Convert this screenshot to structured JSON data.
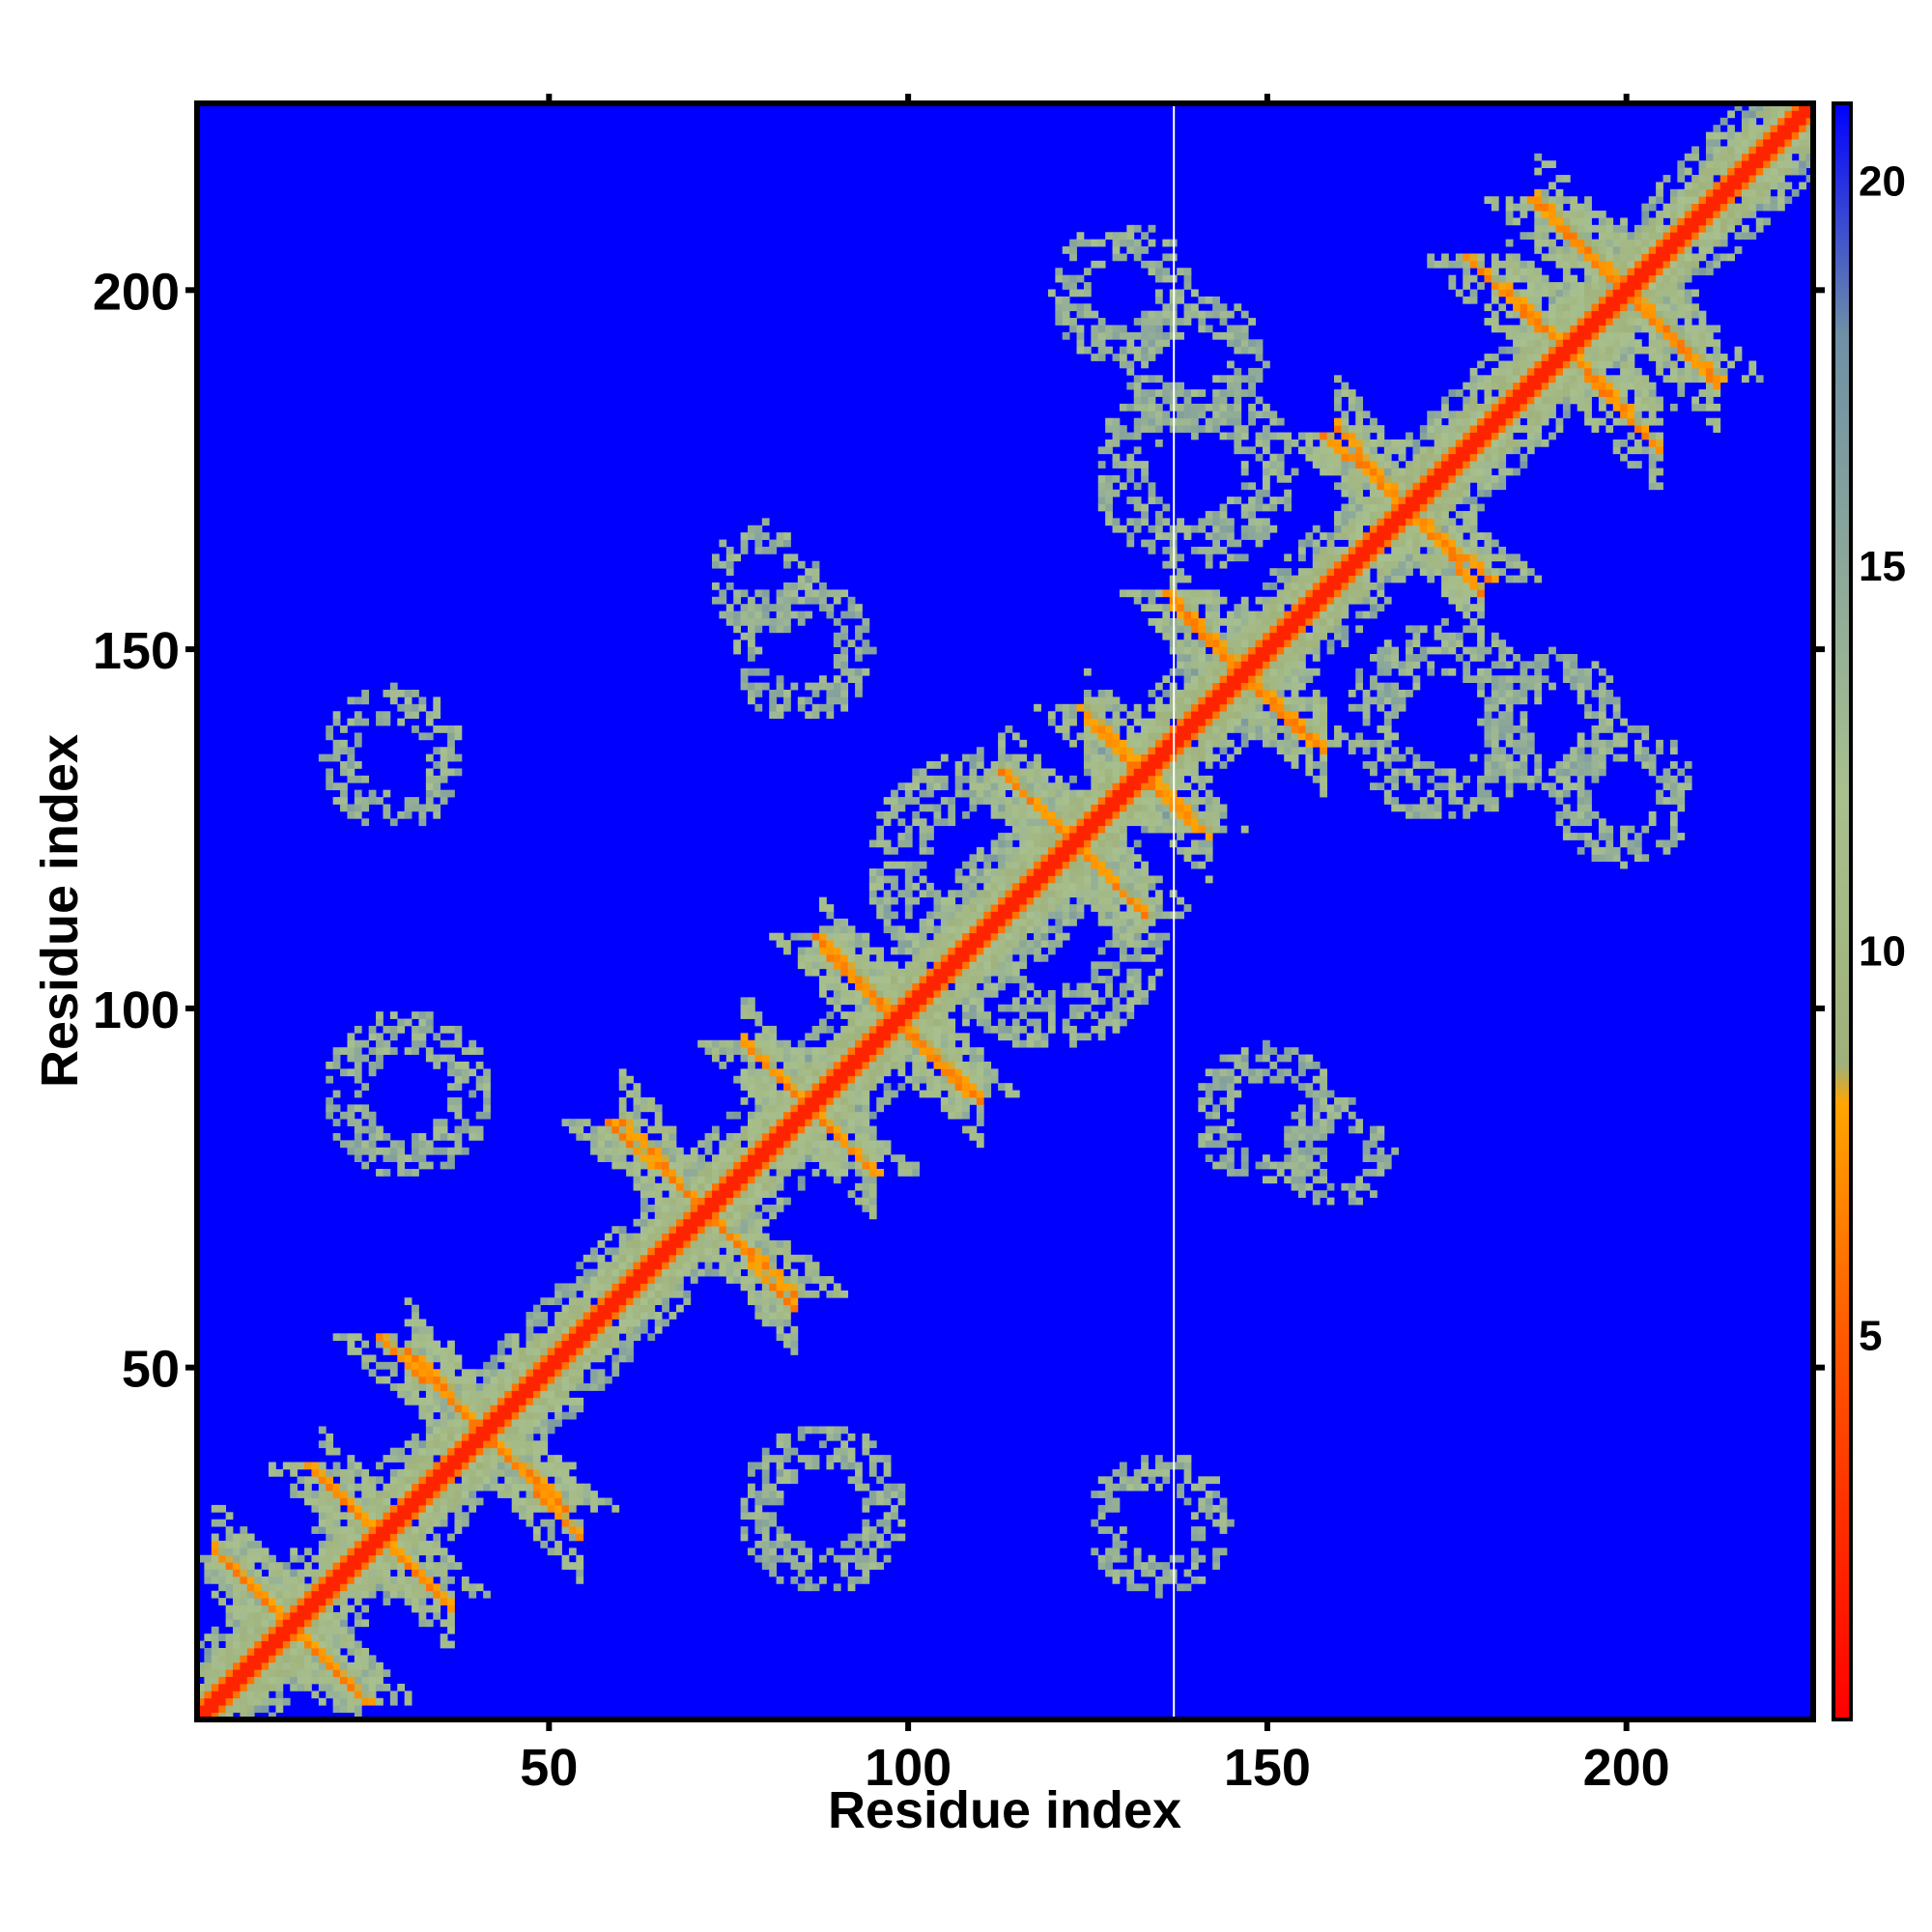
{
  "chart_data": {
    "type": "heatmap",
    "title": "",
    "xlabel": "Residue index",
    "ylabel": "Residue index",
    "n_residues": 226,
    "xlim": [
      1,
      226
    ],
    "ylim": [
      1,
      226
    ],
    "xticks": [
      50,
      100,
      150,
      200
    ],
    "yticks": [
      50,
      100,
      150,
      200
    ],
    "colorbar": {
      "range": [
        0,
        21
      ],
      "ticks": [
        5,
        10,
        15,
        20
      ],
      "stops": [
        {
          "value": 0,
          "color": "#ff0000"
        },
        {
          "value": 5,
          "color": "#ff5a00"
        },
        {
          "value": 8,
          "color": "#ffa500"
        },
        {
          "value": 8.5,
          "color": "#9fb07a"
        },
        {
          "value": 12,
          "color": "#a8c08e"
        },
        {
          "value": 18,
          "color": "#6f8fa6"
        },
        {
          "value": 21,
          "color": "#0000ff"
        }
      ]
    },
    "background_value": 21,
    "background_color": "#0000ff",
    "gap_column_residue": 137,
    "diagonal_band": {
      "width_residues": 3,
      "value": 2
    },
    "contact_features": [
      {
        "type": "antiparallel",
        "x": [
          3,
          24
        ],
        "y": [
          24,
          3
        ],
        "value": 6
      },
      {
        "type": "antiparallel",
        "x": [
          16,
          34
        ],
        "y": [
          36,
          18
        ],
        "value": 6
      },
      {
        "type": "antiparallel",
        "x": [
          26,
          52
        ],
        "y": [
          54,
          30
        ],
        "value": 6
      },
      {
        "type": "antiparallel",
        "x": [
          58,
          84
        ],
        "y": [
          84,
          60
        ],
        "value": 6
      },
      {
        "type": "antiparallel",
        "x": [
          77,
          95
        ],
        "y": [
          95,
          77
        ],
        "value": 6
      },
      {
        "type": "antiparallel",
        "x": [
          87,
          108
        ],
        "y": [
          110,
          88
        ],
        "value": 6
      },
      {
        "type": "antiparallel",
        "x": [
          113,
          133
        ],
        "y": [
          133,
          113
        ],
        "value": 6
      },
      {
        "type": "antiparallel",
        "x": [
          124,
          140
        ],
        "y": [
          142,
          125
        ],
        "value": 6
      },
      {
        "type": "antiparallel",
        "x": [
          136,
          156
        ],
        "y": [
          158,
          137
        ],
        "value": 6
      },
      {
        "type": "antiparallel",
        "x": [
          158,
          181
        ],
        "y": [
          180,
          160
        ],
        "value": 6
      },
      {
        "type": "antiparallel",
        "x": [
          178,
          200
        ],
        "y": [
          205,
          184
        ],
        "value": 6
      },
      {
        "type": "antiparallel",
        "x": [
          187,
          213
        ],
        "y": [
          213,
          188
        ],
        "value": 6
      },
      {
        "type": "blob",
        "x": 135,
        "y": 28,
        "r": 10,
        "value": 12
      },
      {
        "type": "blob",
        "x": 120,
        "y": 110,
        "r": 16,
        "value": 12
      },
      {
        "type": "blob",
        "x": 175,
        "y": 140,
        "r": 14,
        "value": 12
      },
      {
        "type": "blob",
        "x": 150,
        "y": 85,
        "r": 10,
        "value": 12
      },
      {
        "type": "blob",
        "x": 80,
        "y": 160,
        "r": 8,
        "value": 12
      },
      {
        "type": "blob",
        "x": 30,
        "y": 88,
        "r": 12,
        "value": 12
      },
      {
        "type": "blob",
        "x": 140,
        "y": 190,
        "r": 10,
        "value": 12
      },
      {
        "type": "blob",
        "x": 200,
        "y": 130,
        "r": 10,
        "value": 12
      }
    ]
  }
}
